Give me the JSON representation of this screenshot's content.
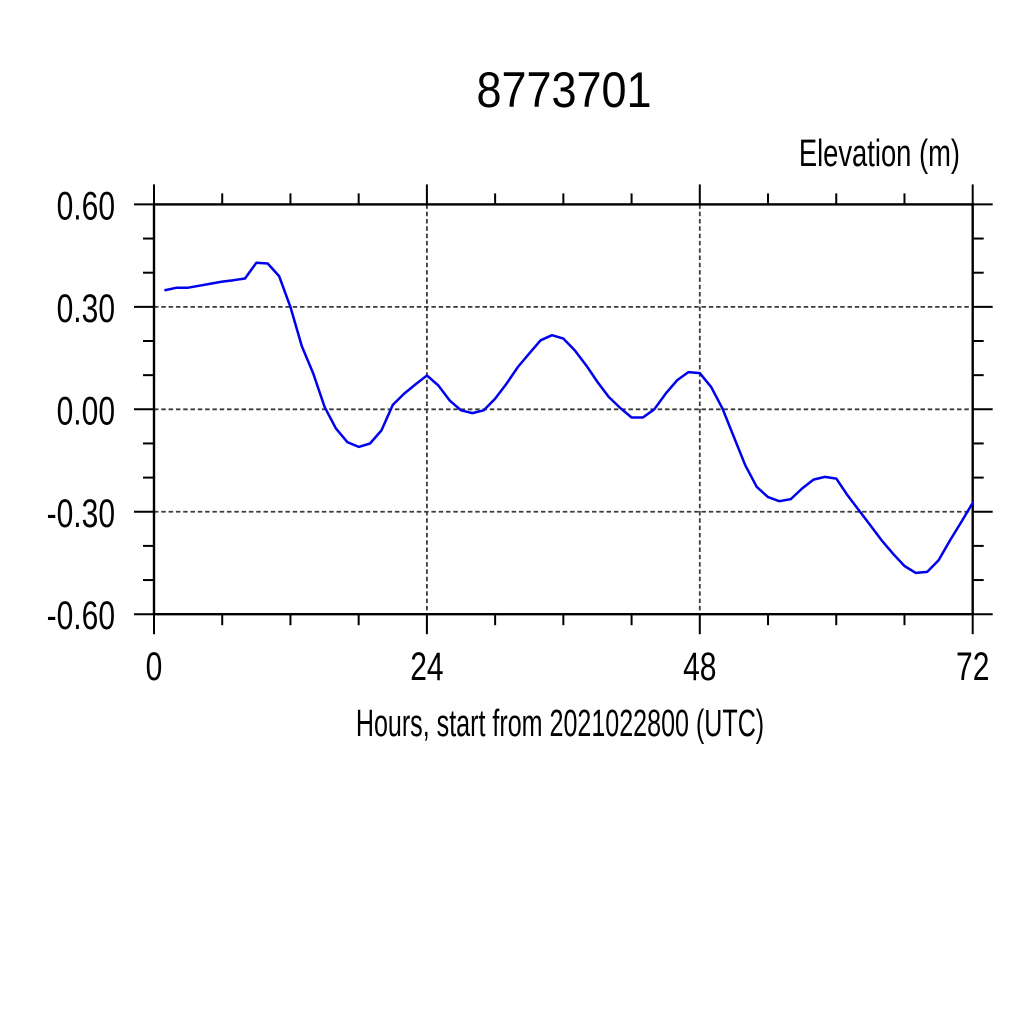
{
  "page": {
    "background_color": "#ffffff",
    "text_color": "#000000"
  },
  "chart_data": {
    "type": "line",
    "title": "8773701",
    "units_label": "Elevation (m)",
    "xlabel": "Hours, start from 2021022800 (UTC)",
    "ylabel": "",
    "legend": "none",
    "grid": "dashed lines at major ticks",
    "xlim": [
      0,
      72
    ],
    "ylim": [
      -0.6,
      0.6
    ],
    "xticks_major": [
      0,
      24,
      48,
      72
    ],
    "xtick_labels": [
      "0",
      "24",
      "48",
      "72"
    ],
    "xticks_minor_step": 6,
    "yticks_major": [
      0.6,
      0.3,
      0.0,
      -0.3,
      -0.6
    ],
    "ytick_labels": [
      "0.60",
      "0.30",
      "0.00",
      "-0.30",
      "-0.60"
    ],
    "yticks_minor_step": 0.1,
    "series": [
      {
        "name": "elevation",
        "color": "#0000ee",
        "x": [
          1,
          2,
          3,
          4,
          5,
          6,
          7,
          8,
          9,
          10,
          11,
          12,
          13,
          14,
          15,
          16,
          17,
          18,
          19,
          20,
          21,
          22,
          23,
          24,
          25,
          26,
          27,
          28,
          29,
          30,
          31,
          32,
          33,
          34,
          35,
          36,
          37,
          38,
          39,
          40,
          41,
          42,
          43,
          44,
          45,
          46,
          47,
          48,
          49,
          50,
          51,
          52,
          53,
          54,
          55,
          56,
          57,
          58,
          59,
          60,
          61,
          62,
          63,
          64,
          65,
          66,
          67,
          68,
          69,
          70,
          71,
          72
        ],
        "y": [
          0.349,
          0.356,
          0.356,
          0.362,
          0.368,
          0.374,
          0.378,
          0.383,
          0.429,
          0.427,
          0.39,
          0.3,
          0.185,
          0.105,
          0.007,
          -0.056,
          -0.096,
          -0.11,
          -0.1,
          -0.062,
          0.013,
          0.046,
          0.073,
          0.099,
          0.07,
          0.026,
          -0.003,
          -0.011,
          -0.003,
          0.031,
          0.075,
          0.124,
          0.163,
          0.202,
          0.217,
          0.207,
          0.173,
          0.129,
          0.08,
          0.036,
          0.004,
          -0.024,
          -0.024,
          0.0,
          0.046,
          0.085,
          0.109,
          0.106,
          0.065,
          0.002,
          -0.081,
          -0.164,
          -0.227,
          -0.257,
          -0.269,
          -0.263,
          -0.232,
          -0.206,
          -0.198,
          -0.203,
          -0.252,
          -0.296,
          -0.34,
          -0.384,
          -0.423,
          -0.459,
          -0.479,
          -0.476,
          -0.442,
          -0.384,
          -0.33,
          -0.274
        ]
      }
    ],
    "style": {
      "frame_color": "#000000",
      "grid_color": "#3c3c3c",
      "line_color": "#0000ee"
    }
  }
}
